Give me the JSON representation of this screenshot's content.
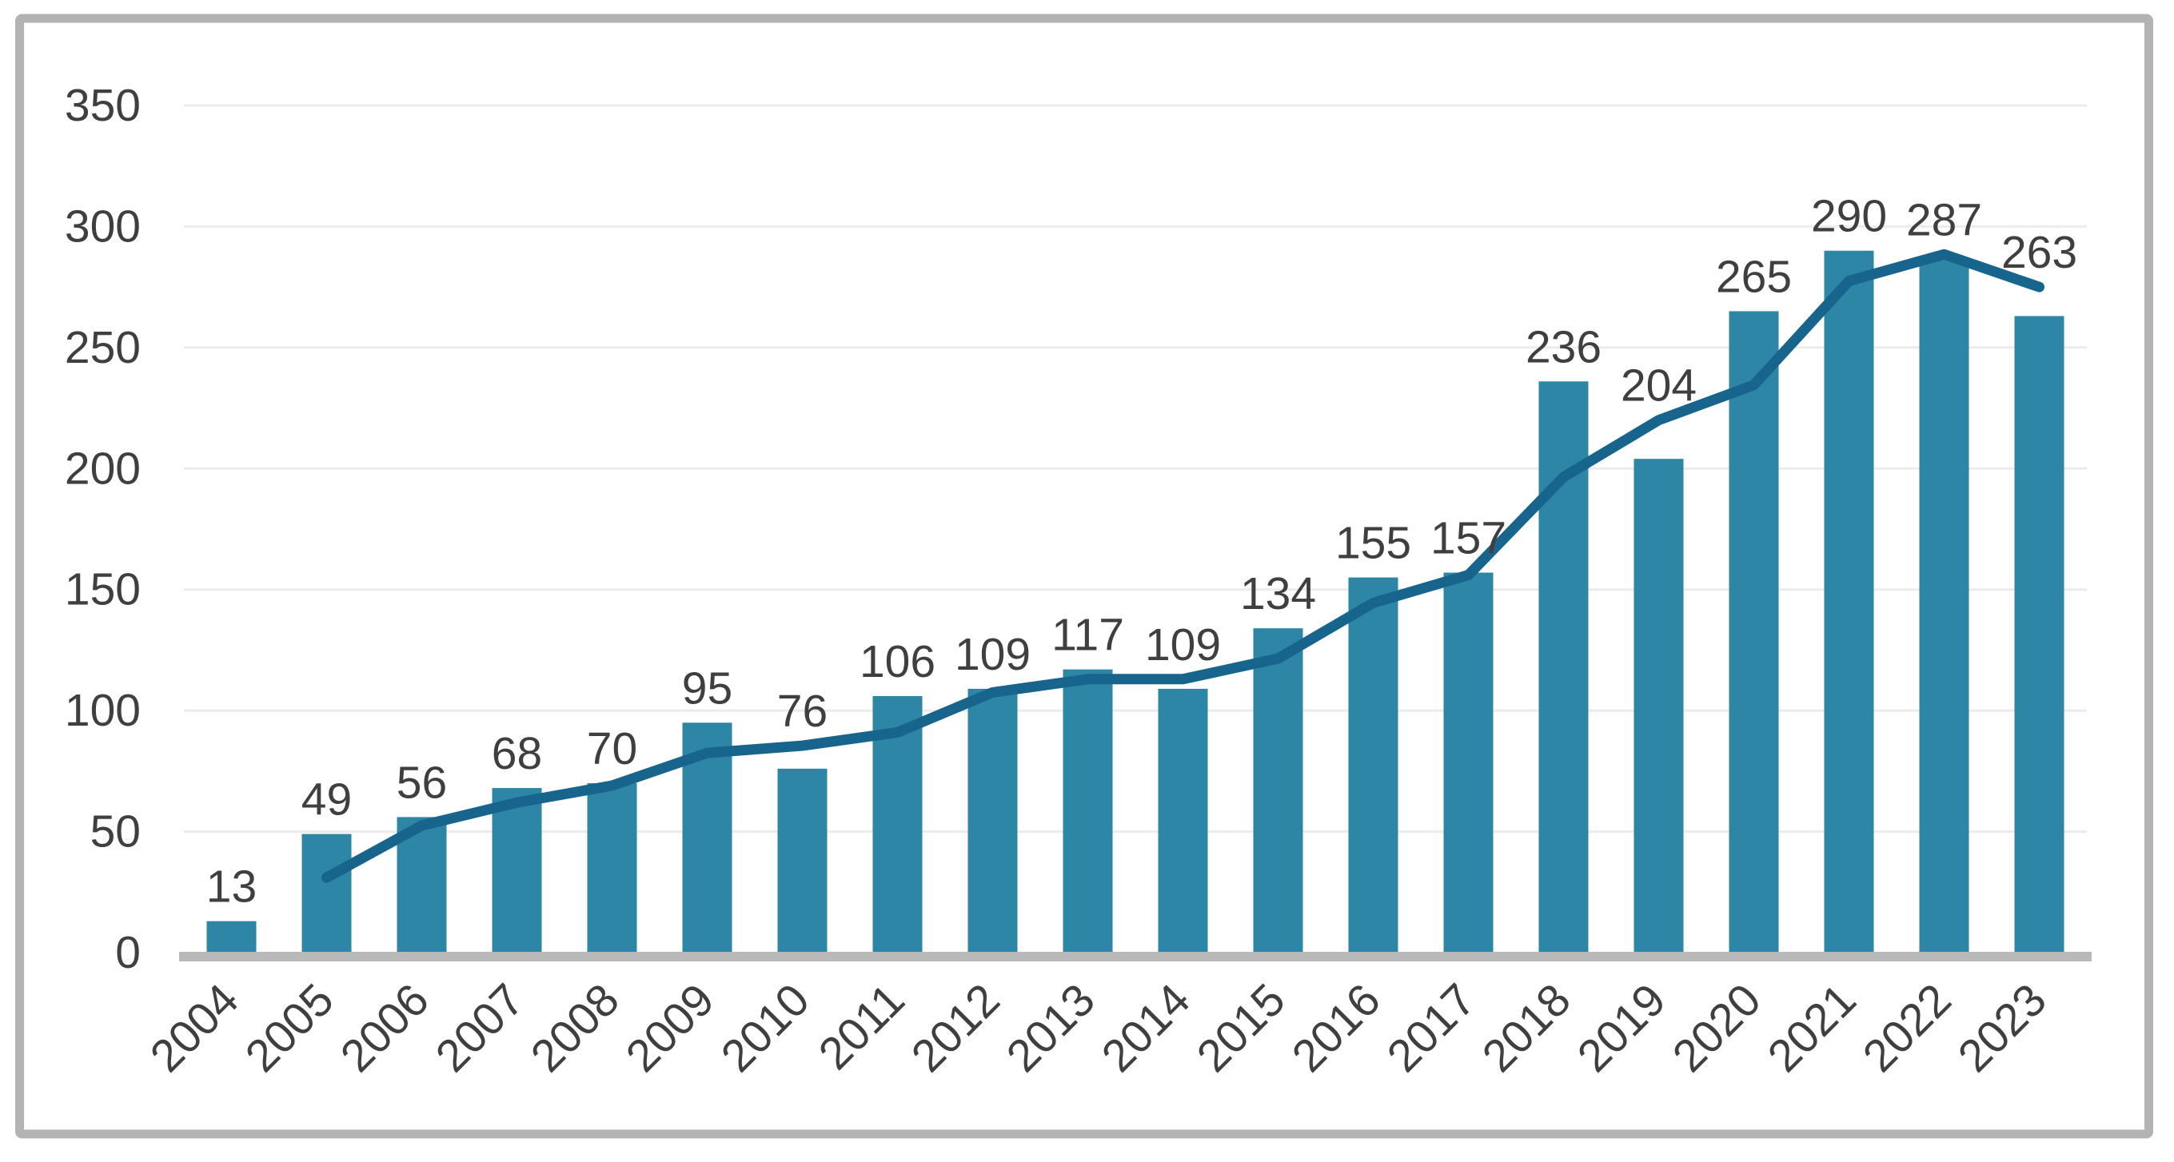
{
  "frame": {
    "background": "#ffffff",
    "border_color": "#b3b3b3"
  },
  "chart_data": {
    "type": "bar",
    "subtype": "combo-bar-line",
    "title": "",
    "categories": [
      "2004",
      "2005",
      "2006",
      "2007",
      "2008",
      "2009",
      "2010",
      "2011",
      "2012",
      "2013",
      "2014",
      "2015",
      "2016",
      "2017",
      "2018",
      "2019",
      "2020",
      "2021",
      "2022",
      "2023"
    ],
    "series": [
      {
        "name": "annual-values-bars",
        "type": "bar",
        "color": "#2E86A6",
        "values": [
          13,
          49,
          56,
          68,
          70,
          95,
          76,
          106,
          109,
          117,
          109,
          134,
          155,
          157,
          236,
          204,
          265,
          290,
          287,
          263
        ],
        "data_labels_shown": true
      },
      {
        "name": "trend-line",
        "type": "line",
        "color": "#17648C",
        "start_category_index": 1,
        "values": [
          31,
          52.5,
          62,
          69,
          82.5,
          85.5,
          91,
          107.5,
          113,
          113,
          121.5,
          144.5,
          156,
          196.5,
          220,
          234.5,
          277.5,
          288.5,
          275
        ],
        "data_labels_shown": false
      }
    ],
    "xlabel": "",
    "ylabel": "",
    "ylim": [
      0,
      350
    ],
    "y_tick_step": 50,
    "y_ticks": [
      0,
      50,
      100,
      150,
      200,
      250,
      300,
      350
    ],
    "grid": true,
    "legend": "none",
    "x_label_rotation_deg": -45,
    "text_color": "#3f3f3f",
    "gridline_color": "#ebebeb",
    "axis_line_color": "#b9b9b9"
  }
}
